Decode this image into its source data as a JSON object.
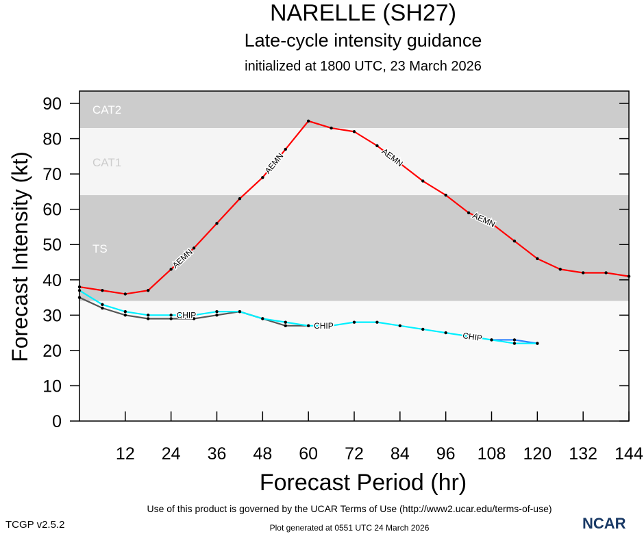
{
  "header": {
    "title": "NARELLE (SH27)",
    "subtitle": "Late-cycle intensity guidance",
    "init": "initialized at 1800 UTC, 23 March 2026"
  },
  "footer": {
    "terms": "Use of this product is governed by the UCAR Terms of Use (http://www2.ucar.edu/terms-of-use)",
    "generated": "Plot generated at 0551 UTC   24 March 2026",
    "version": "TCGP v2.5.2",
    "logo": "NCAR"
  },
  "chart_data": {
    "type": "line",
    "xlabel": "Forecast Period (hr)",
    "ylabel": "Forecast Intensity (kt)",
    "xlim": [
      0,
      144
    ],
    "ylim": [
      0,
      90
    ],
    "xticks": [
      12,
      24,
      36,
      48,
      60,
      72,
      84,
      96,
      108,
      120,
      132,
      144
    ],
    "yticks": [
      0,
      10,
      20,
      30,
      40,
      50,
      60,
      70,
      80,
      90
    ],
    "bands": [
      {
        "label": "CAT2",
        "from": 83,
        "to": 96,
        "color": "#cccccc"
      },
      {
        "label": "CAT1",
        "from": 64,
        "to": 83,
        "color": "#f5f5f5"
      },
      {
        "label": "TS",
        "from": 34,
        "to": 64,
        "color": "#cccccc"
      },
      {
        "label": "",
        "from": 0,
        "to": 34,
        "color": "#f9f9f9"
      }
    ],
    "series": [
      {
        "name": "AEMN",
        "color": "#ff0000",
        "label_hours": [
          27,
          51,
          82,
          106
        ],
        "x": [
          0,
          6,
          12,
          18,
          24,
          30,
          36,
          42,
          48,
          54,
          60,
          66,
          72,
          78,
          84,
          90,
          96,
          102,
          108,
          114,
          120,
          126,
          132,
          138,
          144
        ],
        "y": [
          38,
          37,
          36,
          37,
          43,
          49,
          56,
          63,
          69,
          77,
          85,
          83,
          82,
          78,
          73,
          68,
          64,
          59,
          56,
          51,
          46,
          43,
          42,
          42,
          41
        ]
      },
      {
        "name": "CHIP",
        "color": "#555555",
        "label_hours": [],
        "x": [
          0,
          6,
          12,
          18,
          24,
          30,
          36,
          42,
          48,
          54,
          60
        ],
        "y": [
          35,
          32,
          30,
          29,
          29,
          29,
          30,
          31,
          29,
          27,
          27
        ]
      },
      {
        "name": "",
        "color": "#2a7fff",
        "label_hours": [],
        "x": [
          108,
          114,
          120
        ],
        "y": [
          23,
          23,
          22
        ]
      },
      {
        "name": "CHIP",
        "color": "#00f0ff",
        "label_hours": [
          28,
          64,
          103
        ],
        "x": [
          0,
          6,
          12,
          18,
          24,
          30,
          36,
          42,
          48,
          54,
          60,
          66,
          72,
          78,
          84,
          90,
          96,
          102,
          108,
          114,
          120
        ],
        "y": [
          37,
          33,
          31,
          30,
          30,
          30,
          31,
          31,
          29,
          28,
          27,
          27,
          28,
          28,
          27,
          26,
          25,
          24,
          23,
          22,
          22
        ]
      }
    ]
  }
}
